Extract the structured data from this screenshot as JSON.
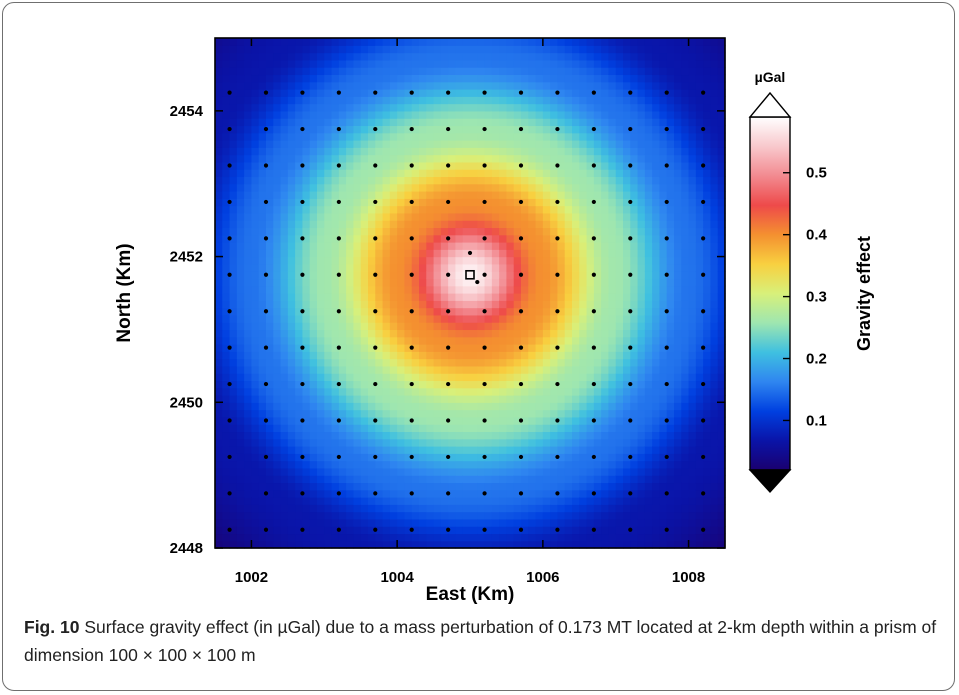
{
  "figure": {
    "label": "Fig. 10",
    "caption": "Surface gravity effect (in µGal) due to a mass perturbation of 0.173 MT located at 2-km depth within a prism of dimension 100 × 100 × 100 m"
  },
  "chart_data": {
    "type": "heatmap",
    "title": "",
    "xlabel": "East (Km)",
    "ylabel": "North (Km)",
    "xlim": [
      1001.5,
      1008.5
    ],
    "ylim": [
      2448,
      2455
    ],
    "xticks": [
      1002,
      1004,
      1006,
      1008
    ],
    "yticks": [
      2448,
      2450,
      2452,
      2454
    ],
    "field": {
      "description_of_peak": "radially symmetric anomaly",
      "center": [
        1005.0,
        2451.75
      ],
      "peak_value": 0.58,
      "value_at_radius_1km": 0.4,
      "value_at_radius_2km": 0.26,
      "value_at_radius_3km": 0.15,
      "value_at_radius_4km": 0.07,
      "cell_size_km": 0.1
    },
    "stations": {
      "grid_x_start": 1001.7,
      "grid_x_step": 0.5,
      "grid_x_count": 14,
      "grid_y_start": 2448.25,
      "grid_y_step": 0.5,
      "grid_y_count": 13,
      "extra_points": [
        [
          1005.0,
          2452.05
        ],
        [
          1005.1,
          2451.65
        ]
      ]
    },
    "source_marker": {
      "x": 1005.0,
      "y": 2451.75,
      "symbol": "square"
    },
    "colorbar": {
      "unit": "µGal",
      "label": "Gravity effect",
      "range": [
        0.02,
        0.59
      ],
      "ticks": [
        0.1,
        0.2,
        0.3,
        0.4,
        0.5
      ],
      "tick_labels": [
        "0.1",
        "0.2",
        "0.3",
        "0.4",
        "0.5"
      ],
      "colors": [
        "#1a0070",
        "#0a14a8",
        "#0040e0",
        "#2f86f0",
        "#3fc0e0",
        "#9ee6b0",
        "#d8f07a",
        "#f8d040",
        "#f49030",
        "#ee4a4a",
        "#f28a90",
        "#f8c8cc",
        "#ffffff"
      ],
      "extend_top_color": "#ffffff",
      "extend_bottom_color": "#000000"
    }
  }
}
